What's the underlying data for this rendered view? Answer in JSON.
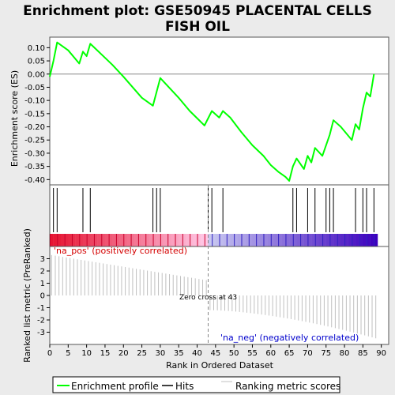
{
  "title": [
    "Enrichment plot: GSE50945 PLACENTAL CELLS",
    "FISH OIL"
  ],
  "colors": {
    "profile": "#00ff00",
    "hits": "#000000",
    "metric": "#c0c0c0",
    "pos_label": "#d40000",
    "neg_label": "#0000cc"
  },
  "chart_data": [
    {
      "name": "enrichment-profile",
      "type": "line",
      "ylabel": "Enrichment score (ES)",
      "ylim": [
        -0.42,
        0.14
      ],
      "xlim": [
        0,
        92
      ],
      "yticks": [
        0.1,
        0.05,
        0.0,
        -0.05,
        -0.1,
        -0.15,
        -0.2,
        -0.25,
        -0.3,
        -0.35,
        -0.4
      ],
      "ytick_labels": [
        "0.10",
        "0.05",
        "0.00",
        "-0.05",
        "-0.10",
        "-0.15",
        "-0.20",
        "-0.25",
        "-0.30",
        "-0.35",
        "-0.40"
      ],
      "x": [
        0,
        1,
        2,
        5,
        8,
        9,
        10,
        11,
        14,
        17,
        20,
        25,
        28,
        30,
        32,
        35,
        38,
        42,
        44,
        46,
        47,
        49,
        52,
        55,
        58,
        60,
        62,
        64,
        65,
        66,
        67,
        69,
        70,
        71,
        72,
        74,
        76,
        77,
        79,
        82,
        83,
        84,
        85,
        86,
        87,
        88
      ],
      "y": [
        -0.01,
        0.05,
        0.12,
        0.09,
        0.04,
        0.085,
        0.068,
        0.115,
        0.075,
        0.035,
        -0.01,
        -0.09,
        -0.12,
        -0.015,
        -0.045,
        -0.09,
        -0.14,
        -0.195,
        -0.14,
        -0.165,
        -0.14,
        -0.165,
        -0.22,
        -0.27,
        -0.31,
        -0.345,
        -0.37,
        -0.39,
        -0.405,
        -0.35,
        -0.32,
        -0.36,
        -0.31,
        -0.335,
        -0.28,
        -0.31,
        -0.23,
        -0.175,
        -0.2,
        -0.25,
        -0.19,
        -0.21,
        -0.13,
        -0.07,
        -0.085,
        0.0
      ]
    },
    {
      "name": "hits",
      "type": "scatter",
      "x": [
        1,
        2,
        9,
        11,
        28,
        29,
        30,
        43,
        44,
        47,
        66,
        67,
        70,
        72,
        75,
        76,
        77,
        83,
        85,
        86,
        88
      ]
    },
    {
      "name": "ranking-metric",
      "type": "bar",
      "xlabel": "Rank in Ordered Dataset",
      "ylabel": "Ranked list metric (PreRanked)",
      "ylim": [
        -4,
        4
      ],
      "yticks": [
        3,
        2,
        1,
        0,
        -1,
        -2,
        -3
      ],
      "xticks": [
        0,
        5,
        10,
        15,
        20,
        25,
        30,
        35,
        40,
        45,
        50,
        55,
        60,
        65,
        70,
        75,
        80,
        85,
        90
      ],
      "n_genes": 89,
      "zero_cross": 43,
      "range_pos": [
        3.3,
        1.25
      ],
      "range_neg": [
        -1.2,
        -3.5
      ],
      "pos_label": "'na_pos' (positively correlated)",
      "neg_label": "'na_neg' (negatively correlated)",
      "zero_cross_label": "Zero cross at 43"
    }
  ],
  "legend": {
    "items": [
      {
        "label": "Enrichment profile",
        "key": "profile"
      },
      {
        "label": "Hits",
        "key": "hits"
      },
      {
        "label": "Ranking metric scores",
        "key": "metric"
      }
    ]
  }
}
